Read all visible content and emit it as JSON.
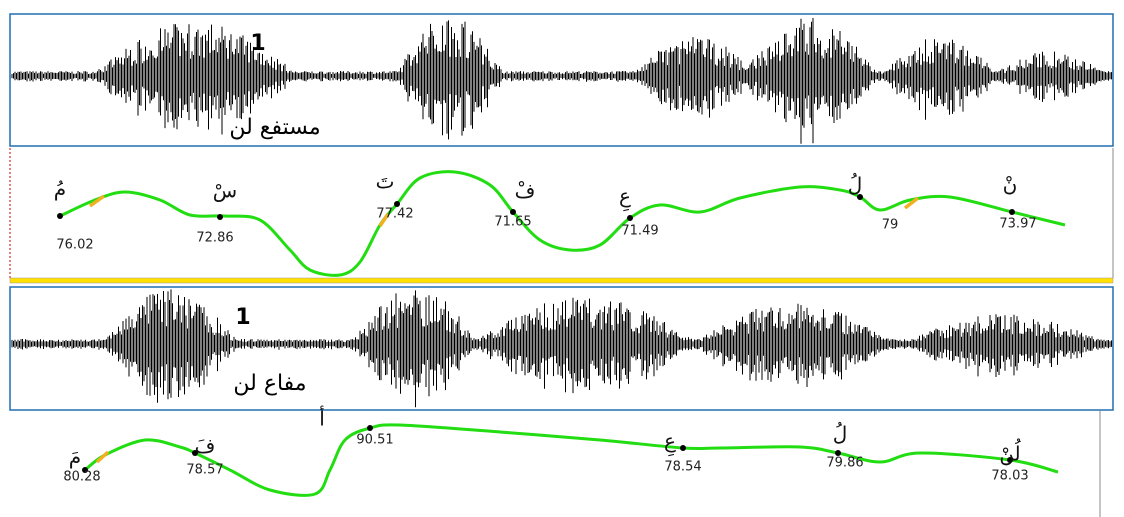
{
  "panels": [
    {
      "waveform_label": "1",
      "word": "مستفع لن",
      "pitch_points": [
        {
          "letter": "مُ",
          "value": 76.02
        },
        {
          "letter": "سْ",
          "value": 72.86
        },
        {
          "letter": "تَ",
          "value": 77.42
        },
        {
          "letter": "فْ",
          "value": 71.65
        },
        {
          "letter": "عِ",
          "value": 71.49
        },
        {
          "letter": "لُ",
          "value": 79
        },
        {
          "letter": "نْ",
          "value": 73.97
        }
      ]
    },
    {
      "waveform_label": "1",
      "word": "مفاع لن",
      "pitch_points": [
        {
          "letter": "مَ",
          "value": 80.28
        },
        {
          "letter": "فَ",
          "value": 78.57
        },
        {
          "letter": "أ",
          "value": 90.51
        },
        {
          "letter": "عِ",
          "value": 78.54
        },
        {
          "letter": "لُ",
          "value": 79.86
        },
        {
          "letter": "لُنْ",
          "value": 78.03
        }
      ]
    }
  ]
}
